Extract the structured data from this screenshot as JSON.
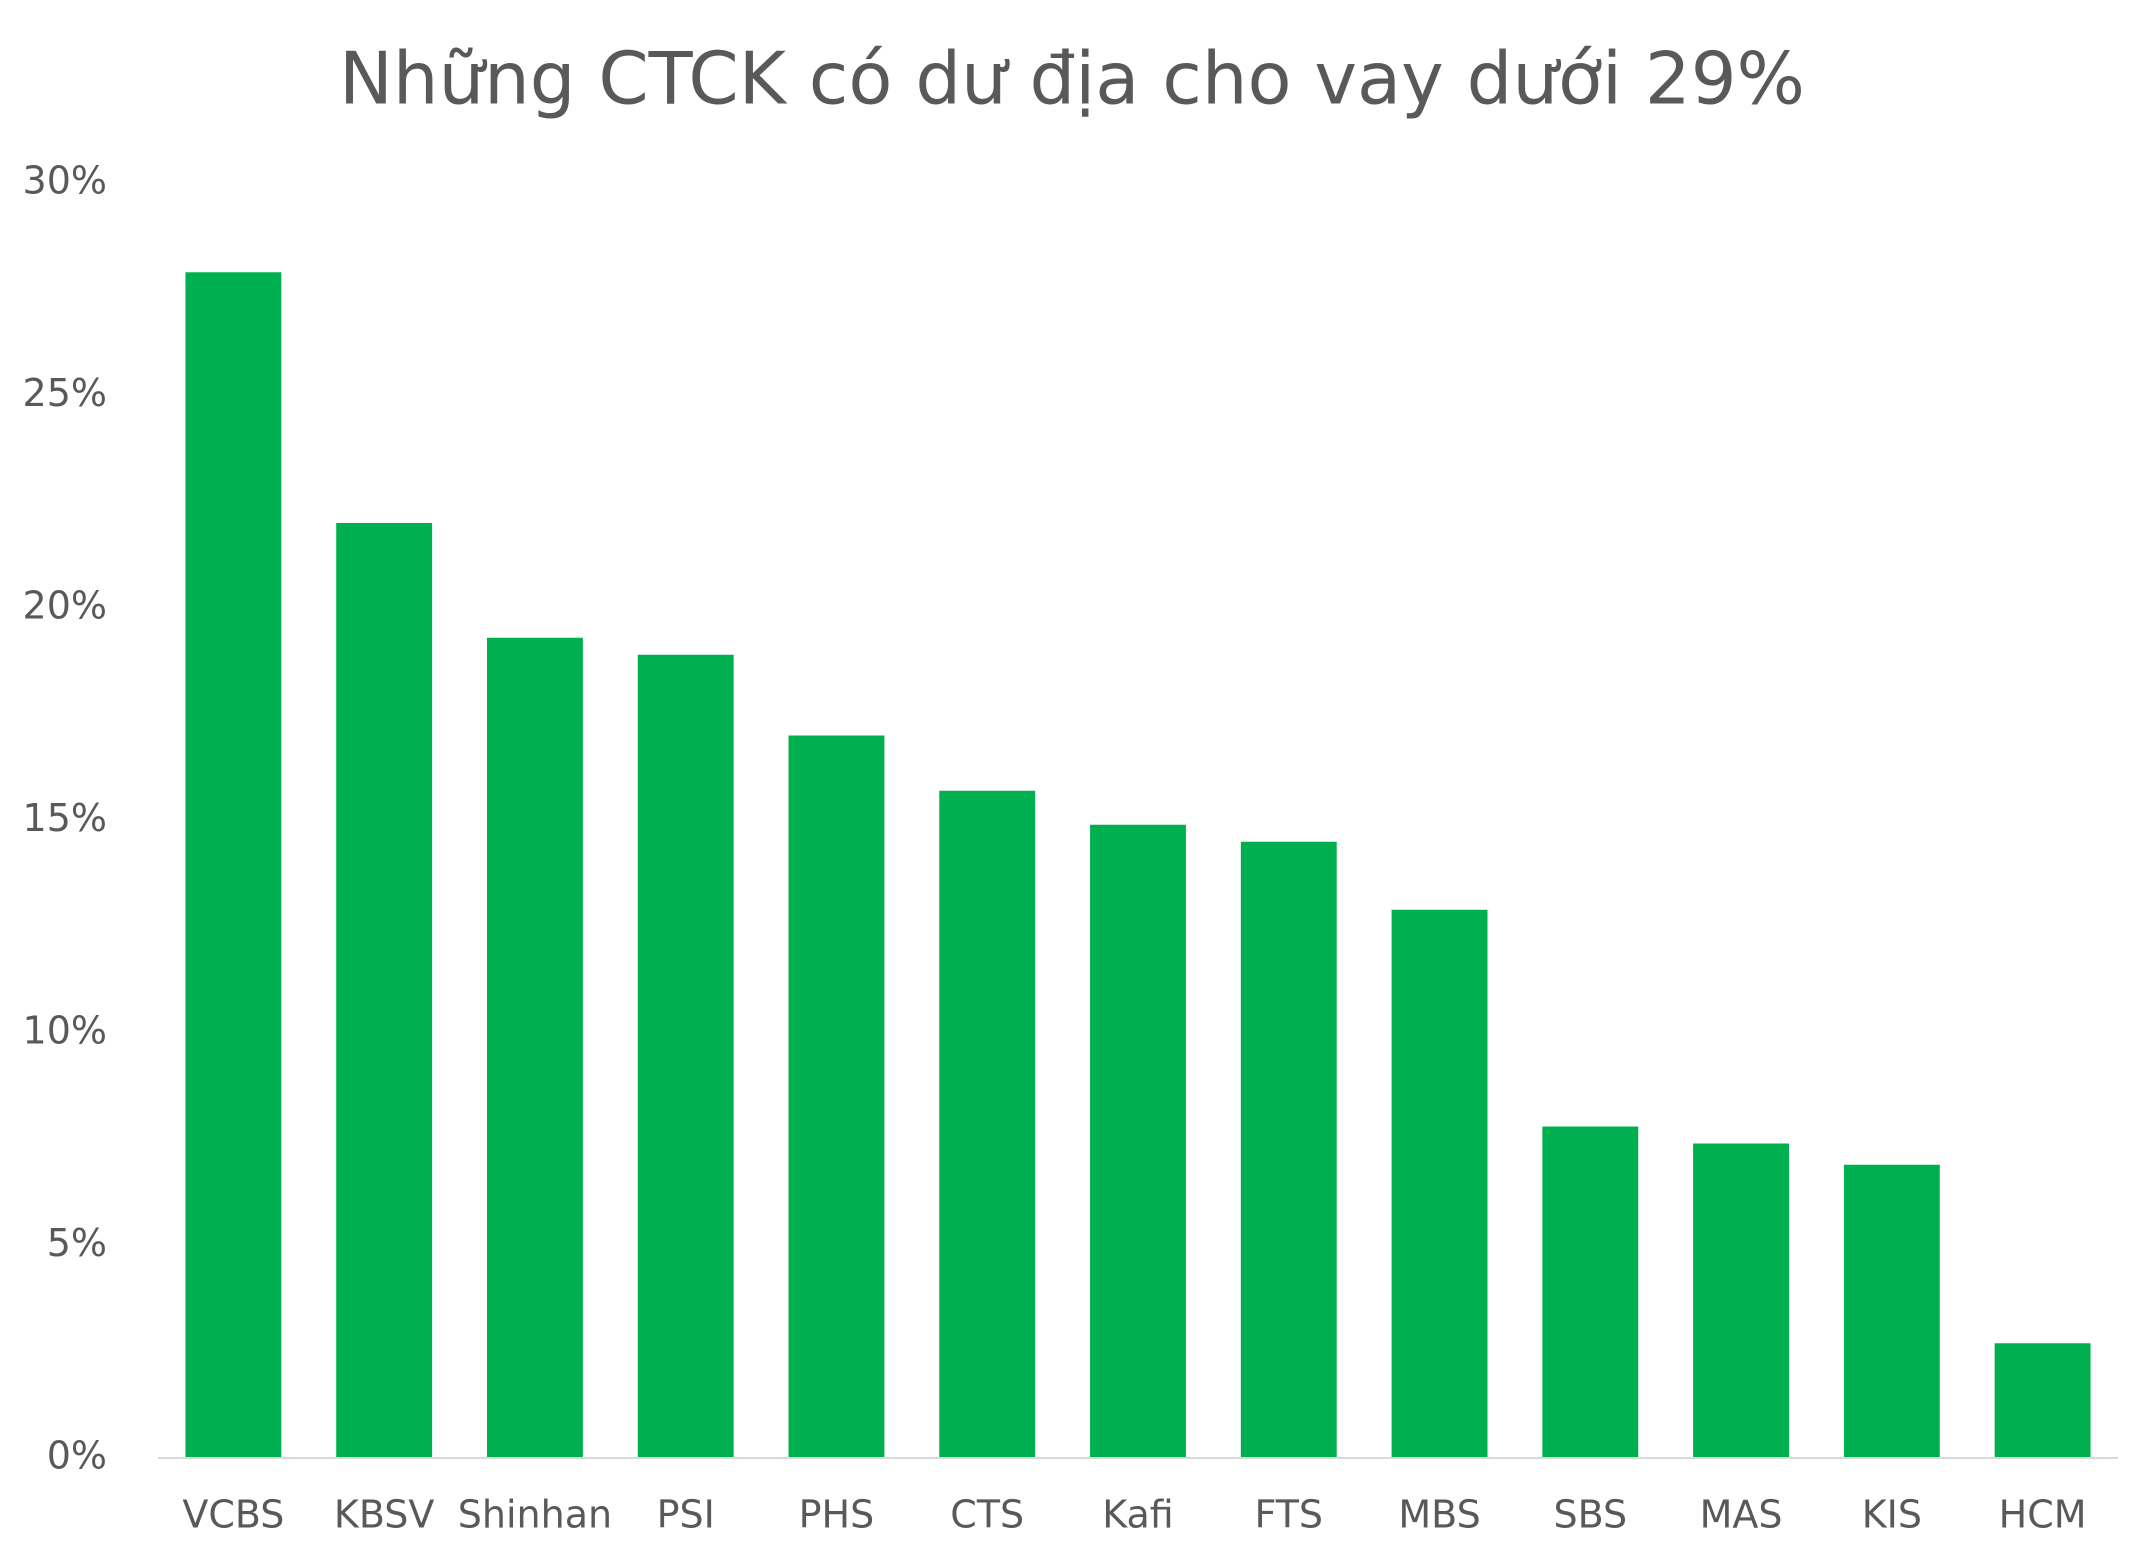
{
  "chart_data": {
    "type": "bar",
    "title": "Những CTCK có dư địa cho vay dưới 29%",
    "categories": [
      "VCBS",
      "KBSV",
      "Shinhan",
      "PSI",
      "PHS",
      "CTS",
      "Kafi",
      "FTS",
      "MBS",
      "SBS",
      "MAS",
      "KIS",
      "HCM"
    ],
    "values": [
      27.9,
      22.0,
      19.3,
      18.9,
      17.0,
      15.7,
      14.9,
      14.5,
      12.9,
      7.8,
      7.4,
      6.9,
      2.7
    ],
    "color": "#00b050",
    "ylim": [
      0,
      30
    ],
    "yticks": [
      {
        "value": 0,
        "label": "0%"
      },
      {
        "value": 5,
        "label": "5%"
      },
      {
        "value": 10,
        "label": "10%"
      },
      {
        "value": 15,
        "label": "15%"
      },
      {
        "value": 20,
        "label": "20%"
      },
      {
        "value": 25,
        "label": "25%"
      },
      {
        "value": 30,
        "label": "30%"
      }
    ],
    "grid": false
  }
}
